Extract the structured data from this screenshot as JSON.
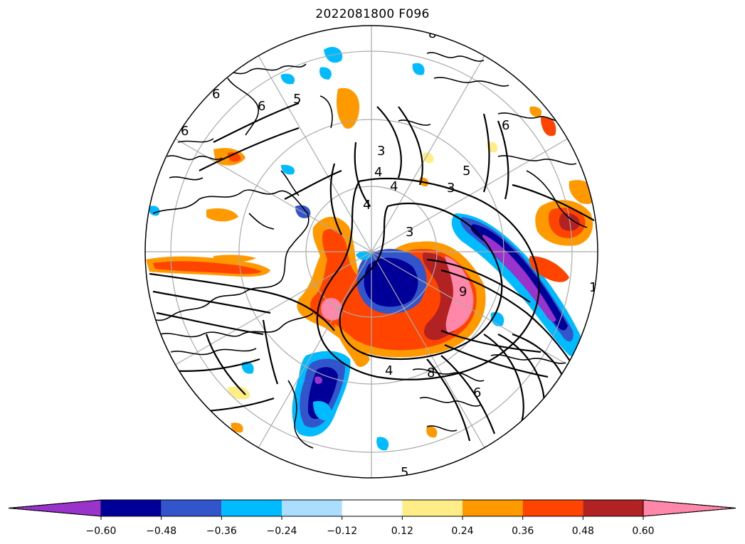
{
  "title": "2022081800 F096",
  "map": {
    "projection": "north-polar-stereographic",
    "graticule": true,
    "coastlines": true,
    "contour_labels": [
      "3",
      "3",
      "3",
      "4",
      "4",
      "4",
      "4",
      "5",
      "5",
      "5",
      "6",
      "6",
      "6",
      "6",
      "6",
      "8",
      "8",
      "9",
      "1"
    ]
  },
  "colorbar": {
    "extend": "both",
    "boundaries": [
      -0.72,
      -0.6,
      -0.48,
      -0.36,
      -0.24,
      -0.12,
      0.12,
      0.24,
      0.36,
      0.48,
      0.6,
      0.72
    ],
    "colors": [
      "#9933cc",
      "#000099",
      "#3355cc",
      "#00bbff",
      "#aaddff",
      "#ffffff",
      "#ffee88",
      "#ff9900",
      "#ff4400",
      "#b22222",
      "#ff88aa"
    ],
    "tick_labels": [
      "−0.60",
      "−0.48",
      "−0.36",
      "−0.24",
      "−0.12",
      "0.12",
      "0.24",
      "0.36",
      "0.48",
      "0.60"
    ]
  }
}
